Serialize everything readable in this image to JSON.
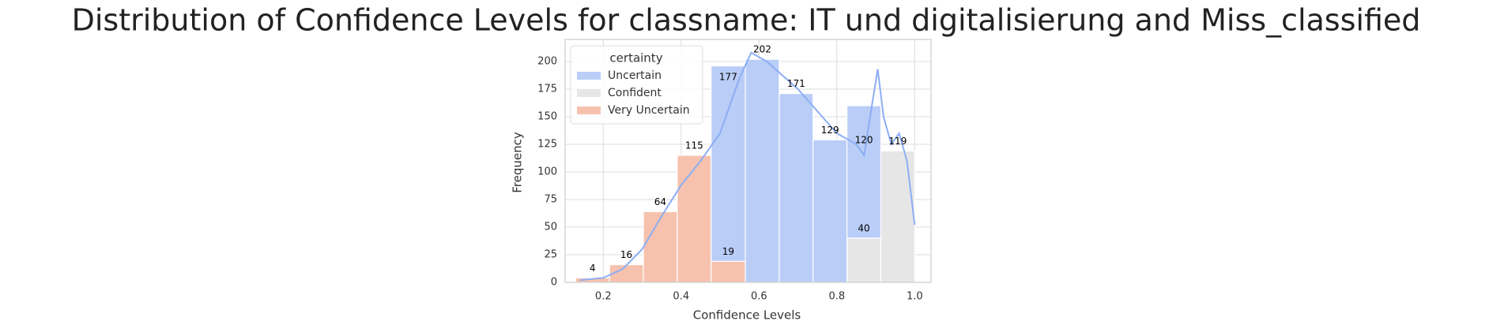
{
  "chart_data": {
    "type": "histogram",
    "title": "Distribution of Confidence Levels for classname: IT und digitalisierung and Miss_classified",
    "xlabel": "Confidence Levels",
    "ylabel": "Frequency",
    "bins": [
      0.129,
      0.216,
      0.303,
      0.39,
      0.477,
      0.565,
      0.652,
      0.739,
      0.826,
      0.913,
      1.0
    ],
    "series": [
      {
        "name": "Uncertain",
        "color": "#b9cdf7",
        "values": [
          null,
          null,
          null,
          null,
          177,
          202,
          171,
          129,
          120,
          null
        ]
      },
      {
        "name": "Confident",
        "color": "#e6e6e6",
        "values": [
          null,
          null,
          null,
          null,
          null,
          null,
          null,
          null,
          40,
          119
        ]
      },
      {
        "name": "Very Uncertain",
        "color": "#f6c2ae",
        "values": [
          4,
          16,
          64,
          115,
          19,
          null,
          null,
          null,
          null,
          null
        ]
      }
    ],
    "kde": {
      "color": "#8caef5",
      "x": [
        0.14,
        0.2,
        0.25,
        0.3,
        0.35,
        0.4,
        0.45,
        0.5,
        0.55,
        0.58,
        0.62,
        0.7,
        0.75,
        0.8,
        0.85,
        0.87,
        0.89,
        0.905,
        0.92,
        0.94,
        0.96,
        0.98,
        1.0
      ],
      "y": [
        2,
        4,
        12,
        30,
        60,
        88,
        110,
        135,
        185,
        208,
        200,
        175,
        155,
        135,
        125,
        115,
        160,
        193,
        150,
        125,
        135,
        110,
        52
      ]
    },
    "legend_title": "certainty",
    "legend": "upper left",
    "grid": true,
    "xlim": [
      0.102,
      1.042
    ],
    "ylim": [
      0,
      220
    ],
    "xticks": [
      0.2,
      0.4,
      0.6,
      0.8,
      {
        "value": 1,
        "label": "1.0"
      }
    ],
    "yticks": [
      0,
      25,
      50,
      75,
      100,
      125,
      150,
      175,
      200
    ]
  }
}
